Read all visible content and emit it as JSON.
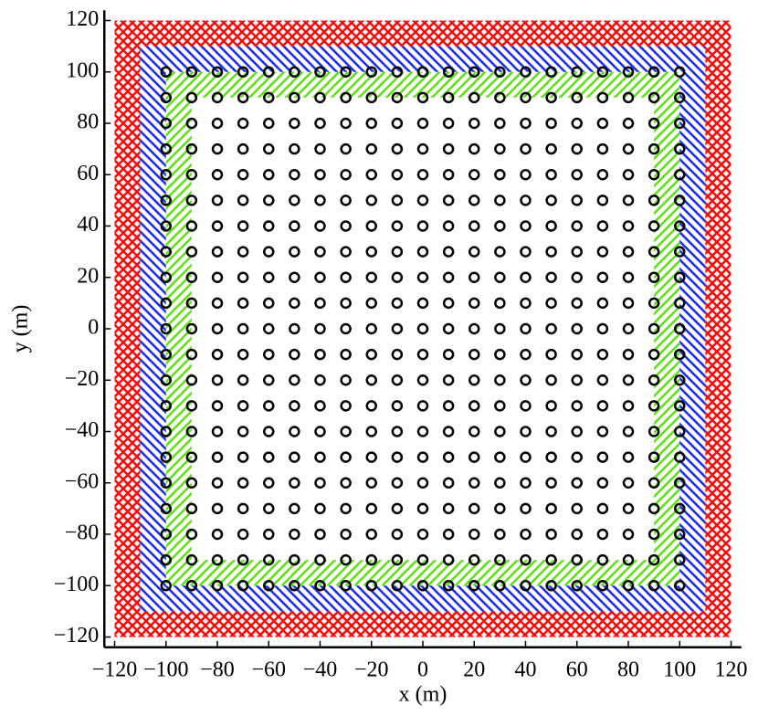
{
  "chart_data": {
    "type": "scatter",
    "xlabel": "x (m)",
    "ylabel": "y (m)",
    "x": [
      -100,
      -90,
      -80,
      -70,
      -60,
      -50,
      -40,
      -30,
      -20,
      -10,
      0,
      10,
      20,
      30,
      40,
      50,
      60,
      70,
      80,
      90,
      100
    ],
    "y": [
      -100,
      -90,
      -80,
      -70,
      -60,
      -50,
      -40,
      -30,
      -20,
      -10,
      0,
      10,
      20,
      30,
      40,
      50,
      60,
      70,
      80,
      90,
      100
    ],
    "marker_color": "#000000",
    "regions": [
      {
        "inner": 90,
        "outer": 100,
        "color": "#66dd22",
        "hatch": "/"
      },
      {
        "inner": 100,
        "outer": 110,
        "color": "#2233dd",
        "hatch": "\\"
      },
      {
        "inner": 110,
        "outer": 120,
        "color": "#ee1111",
        "hatch": "x"
      }
    ],
    "xlim": [
      -124,
      124
    ],
    "ylim": [
      -124,
      124
    ],
    "xticks": [
      {
        "value": -120,
        "label": "−120"
      },
      {
        "value": -100,
        "label": "−100"
      },
      {
        "value": -80,
        "label": "−80"
      },
      {
        "value": -60,
        "label": "−60"
      },
      {
        "value": -40,
        "label": "−40"
      },
      {
        "value": -20,
        "label": "−20"
      },
      0,
      20,
      40,
      60,
      80,
      100,
      120
    ],
    "yticks": [
      {
        "value": -120,
        "label": "−120"
      },
      {
        "value": -100,
        "label": "−100"
      },
      {
        "value": -80,
        "label": "−80"
      },
      {
        "value": -60,
        "label": "−60"
      },
      {
        "value": -40,
        "label": "−40"
      },
      {
        "value": -20,
        "label": "−20"
      },
      0,
      20,
      40,
      60,
      80,
      100,
      120
    ]
  }
}
